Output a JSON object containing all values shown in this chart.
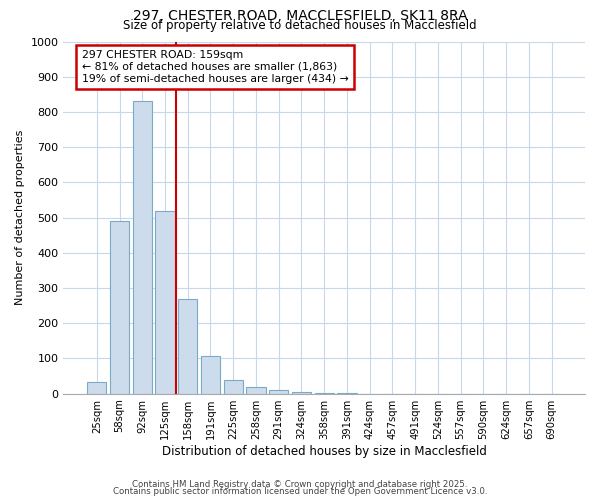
{
  "title_line1": "297, CHESTER ROAD, MACCLESFIELD, SK11 8RA",
  "title_line2": "Size of property relative to detached houses in Macclesfield",
  "xlabel": "Distribution of detached houses by size in Macclesfield",
  "ylabel": "Number of detached properties",
  "categories": [
    "25sqm",
    "58sqm",
    "92sqm",
    "125sqm",
    "158sqm",
    "191sqm",
    "225sqm",
    "258sqm",
    "291sqm",
    "324sqm",
    "358sqm",
    "391sqm",
    "424sqm",
    "457sqm",
    "491sqm",
    "524sqm",
    "557sqm",
    "590sqm",
    "624sqm",
    "657sqm",
    "690sqm"
  ],
  "values": [
    32,
    490,
    830,
    520,
    270,
    108,
    40,
    20,
    10,
    5,
    3,
    3,
    0,
    0,
    0,
    0,
    0,
    0,
    0,
    0,
    0
  ],
  "bar_color": "#cddcec",
  "bar_edge_color": "#7aaac8",
  "property_line_x": 3.5,
  "property_label": "297 CHESTER ROAD: 159sqm",
  "annotation_line1": "← 81% of detached houses are smaller (1,863)",
  "annotation_line2": "19% of semi-detached houses are larger (434) →",
  "annotation_box_facecolor": "#ffffff",
  "annotation_box_edgecolor": "#cc0000",
  "property_line_color": "#cc0000",
  "ylim": [
    0,
    1000
  ],
  "yticks": [
    0,
    100,
    200,
    300,
    400,
    500,
    600,
    700,
    800,
    900,
    1000
  ],
  "plot_bg_color": "#ffffff",
  "fig_bg_color": "#ffffff",
  "grid_color": "#c8d8ea",
  "footer_line1": "Contains HM Land Registry data © Crown copyright and database right 2025.",
  "footer_line2": "Contains public sector information licensed under the Open Government Licence v3.0."
}
